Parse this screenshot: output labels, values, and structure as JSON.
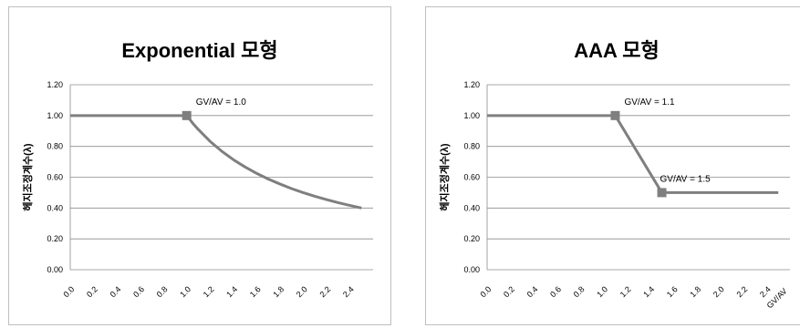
{
  "chart_data": [
    {
      "type": "line",
      "title": "Exponential 모형",
      "ylabel": "헤지조정계수(λ)",
      "xlabel": "",
      "ylim": [
        0,
        1.2
      ],
      "yticks": [
        "0.00",
        "0.20",
        "0.40",
        "0.60",
        "0.80",
        "1.00",
        "1.20"
      ],
      "xticks": [
        "0.0",
        "0.2",
        "0.4",
        "0.6",
        "0.8",
        "1.0",
        "1.2",
        "1.4",
        "1.6",
        "1.8",
        "2.0",
        "2.2",
        "2.4"
      ],
      "grid": true,
      "x": [
        0.0,
        1.0,
        1.05,
        1.1,
        1.2,
        1.3,
        1.4,
        1.5,
        1.6,
        1.7,
        1.8,
        1.9,
        2.0,
        2.1,
        2.2,
        2.3,
        2.4,
        2.5
      ],
      "y": [
        1.0,
        1.0,
        0.952,
        0.909,
        0.833,
        0.769,
        0.714,
        0.667,
        0.625,
        0.588,
        0.556,
        0.526,
        0.5,
        0.476,
        0.455,
        0.435,
        0.417,
        0.4
      ],
      "markers": [
        {
          "x": 1.0,
          "y": 1.0
        }
      ],
      "annotations": [
        {
          "text": "GV/AV = 1.0",
          "x": 1.0,
          "y": 1.0
        }
      ]
    },
    {
      "type": "line",
      "title": "AAA 모형",
      "ylabel": "헤지조정계수(λ)",
      "xlabel": "GV/AV",
      "ylim": [
        0,
        1.2
      ],
      "yticks": [
        "0.00",
        "0.20",
        "0.40",
        "0.60",
        "0.80",
        "1.00",
        "1.20"
      ],
      "xticks": [
        "0.0",
        "0.2",
        "0.4",
        "0.6",
        "0.8",
        "1.0",
        "1.2",
        "1.4",
        "1.6",
        "1.8",
        "2.0",
        "2.2",
        "2.4"
      ],
      "grid": true,
      "x": [
        0.0,
        1.1,
        1.5,
        2.5
      ],
      "y": [
        1.0,
        1.0,
        0.5,
        0.5
      ],
      "markers": [
        {
          "x": 1.1,
          "y": 1.0
        },
        {
          "x": 1.5,
          "y": 0.5
        }
      ],
      "annotations": [
        {
          "text": "GV/AV = 1.1",
          "x": 1.1,
          "y": 1.0
        },
        {
          "text": "GV/AV = 1.5",
          "x": 1.5,
          "y": 0.5
        }
      ]
    }
  ],
  "style": {
    "line_color": "#7f7f7f",
    "grid_color": "#8c8c8c",
    "marker_color": "#7f7f7f"
  }
}
